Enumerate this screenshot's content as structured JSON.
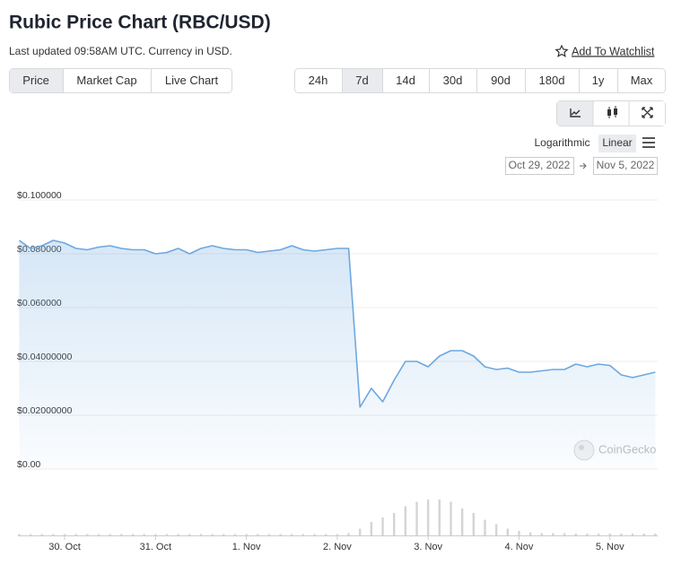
{
  "header": {
    "title": "Rubic Price Chart (RBC/USD)",
    "subtitle": "Last updated 09:58AM UTC. Currency in USD.",
    "watchlist": "Add To Watchlist"
  },
  "tabs": [
    "Price",
    "Market Cap",
    "Live Chart"
  ],
  "active_tab": "Price",
  "ranges": [
    "24h",
    "7d",
    "14d",
    "30d",
    "90d",
    "180d",
    "1y",
    "Max"
  ],
  "active_range": "7d",
  "scale_options": [
    "Logarithmic",
    "Linear"
  ],
  "active_scale": "Linear",
  "date_from": "Oct 29, 2022",
  "date_to": "Nov 5, 2022",
  "chart_data": {
    "type": "line",
    "categories": [
      null,
      null,
      null,
      null,
      "30. Oct",
      null,
      null,
      null,
      null,
      null,
      null,
      null,
      "31. Oct",
      null,
      null,
      null,
      null,
      null,
      null,
      null,
      "1. Nov",
      null,
      null,
      null,
      null,
      null,
      null,
      null,
      "2. Nov",
      null,
      null,
      null,
      null,
      null,
      null,
      null,
      "3. Nov",
      null,
      null,
      null,
      null,
      null,
      null,
      null,
      "4. Nov",
      null,
      null,
      null,
      null,
      null,
      null,
      null,
      "5. Nov",
      null,
      null,
      null,
      null
    ],
    "values": [
      0.085,
      0.082,
      0.083,
      0.085,
      0.084,
      0.082,
      0.0815,
      0.0825,
      0.083,
      0.082,
      0.0815,
      0.0815,
      0.08,
      0.0805,
      0.082,
      0.08,
      0.082,
      0.083,
      0.082,
      0.0815,
      0.0815,
      0.0805,
      0.081,
      0.0815,
      0.083,
      0.0815,
      0.081,
      0.0815,
      0.082,
      0.082,
      0.023,
      0.03,
      0.025,
      0.033,
      0.04,
      0.04,
      0.038,
      0.042,
      0.044,
      0.044,
      0.042,
      0.038,
      0.037,
      0.0375,
      0.036,
      0.036,
      0.0365,
      0.037,
      0.037,
      0.039,
      0.038,
      0.039,
      0.0385,
      0.035,
      0.034,
      0.035,
      0.036
    ],
    "color": "#6ca8e0",
    "ylim": [
      0,
      0.1
    ],
    "yticks": [
      {
        "value": 0,
        "label": "$0.00"
      },
      {
        "value": 0.02,
        "label": "$0.02000000"
      },
      {
        "value": 0.04,
        "label": "$0.04000000"
      },
      {
        "value": 0.06,
        "label": "$0.060000"
      },
      {
        "value": 0.08,
        "label": "$0.080000"
      },
      {
        "value": 0.1,
        "label": "$0.100000"
      }
    ],
    "grid": true,
    "volume": [
      0.3,
      0.3,
      0.3,
      0.3,
      0.3,
      0.3,
      0.3,
      0.3,
      0.3,
      0.3,
      0.3,
      0.3,
      0.3,
      0.3,
      0.3,
      0.3,
      0.3,
      0.3,
      0.3,
      0.3,
      0.3,
      0.3,
      0.3,
      0.3,
      0.3,
      0.3,
      0.3,
      0.3,
      0.3,
      0.5,
      1.5,
      3,
      4,
      5,
      6.5,
      7.5,
      8,
      8,
      7.5,
      6,
      5,
      3.5,
      2.5,
      1.5,
      1,
      0.7,
      0.5,
      0.5,
      0.5,
      0.4,
      0.4,
      0.4,
      0.4,
      0.4,
      0.4,
      0.4,
      0.4
    ],
    "volume_lim": [
      0,
      10
    ],
    "volume_color": "#d4d4d4",
    "watermark": "CoinGecko"
  }
}
